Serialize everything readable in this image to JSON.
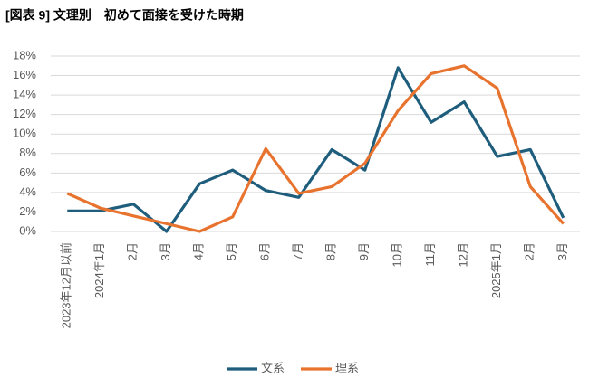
{
  "chart_data": {
    "type": "line",
    "title": "[図表 9]  文理別　初めて面接を受けた時期",
    "categories": [
      "2023年12月以前",
      "2024年1月",
      "2月",
      "3月",
      "4月",
      "5月",
      "6月",
      "7月",
      "8月",
      "9月",
      "10月",
      "11月",
      "12月",
      "2025年1月",
      "2月",
      "3月"
    ],
    "series": [
      {
        "name": "文系",
        "color": "#1f5d7d",
        "values": [
          2.1,
          2.1,
          2.8,
          0,
          4.9,
          6.3,
          4.2,
          3.5,
          8.4,
          6.3,
          16.8,
          11.2,
          13.3,
          7.7,
          8.4,
          1.4
        ]
      },
      {
        "name": "理系",
        "color": "#e8732e",
        "values": [
          3.9,
          2.4,
          1.6,
          0.8,
          0,
          1.5,
          8.5,
          3.9,
          4.6,
          7.0,
          12.4,
          16.2,
          17.0,
          14.7,
          4.6,
          0.8
        ]
      }
    ],
    "ylim": [
      0,
      18
    ],
    "yticks": [
      {
        "value": 0,
        "label": "0%"
      },
      {
        "value": 2,
        "label": "2%"
      },
      {
        "value": 4,
        "label": "4%"
      },
      {
        "value": 6,
        "label": "6%"
      },
      {
        "value": 8,
        "label": "8%"
      },
      {
        "value": 10,
        "label": "10%"
      },
      {
        "value": 12,
        "label": "12%"
      },
      {
        "value": 14,
        "label": "14%"
      },
      {
        "value": 16,
        "label": "16%"
      },
      {
        "value": 18,
        "label": "18%"
      }
    ],
    "grid": true,
    "legend": "bottom"
  }
}
